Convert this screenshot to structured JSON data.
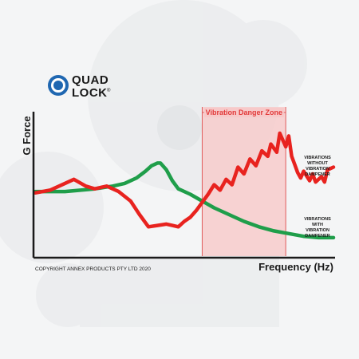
{
  "brand": {
    "name_line1": "QUAD",
    "name_line2": "LOCK",
    "trademark": "®",
    "accent_color": "#1f67b1"
  },
  "copyright": "COPYRIGHT ANNEX PRODUCTS PTY LTD 2020",
  "colors": {
    "danger_zone_fill": "#f7c9c9",
    "danger_zone_border": "#e05a5a",
    "danger_zone_label": "#e23a3a",
    "without_dampener": "#e8231f",
    "with_dampener": "#1f9e4a",
    "axis": "#1a1a1a"
  },
  "chart_data": {
    "type": "line",
    "xlabel": "Frequency (Hz)",
    "ylabel": "G Force",
    "xlim": [
      0,
      100
    ],
    "ylim": [
      0,
      100
    ],
    "grid": false,
    "legend": "inline-right",
    "band": {
      "label": "Vibration Danger Zone",
      "x_start": 56,
      "x_end": 84
    },
    "series": [
      {
        "name": "VIBRATIONS WITHOUT VIBRATION DAMPENER",
        "color": "#e8231f",
        "points": [
          [
            0,
            46
          ],
          [
            5,
            48
          ],
          [
            10,
            53
          ],
          [
            13,
            56
          ],
          [
            17,
            51
          ],
          [
            20,
            49
          ],
          [
            24,
            51
          ],
          [
            28,
            47
          ],
          [
            32,
            40
          ],
          [
            35,
            30
          ],
          [
            38,
            21
          ],
          [
            41,
            22
          ],
          [
            44,
            23
          ],
          [
            46,
            22
          ],
          [
            48,
            21
          ],
          [
            50,
            25
          ],
          [
            52,
            28
          ],
          [
            54,
            33
          ],
          [
            56,
            39
          ],
          [
            58,
            45
          ],
          [
            60,
            52
          ],
          [
            62,
            48
          ],
          [
            64,
            56
          ],
          [
            66,
            52
          ],
          [
            68,
            65
          ],
          [
            70,
            60
          ],
          [
            72,
            71
          ],
          [
            74,
            66
          ],
          [
            76,
            77
          ],
          [
            78,
            73
          ],
          [
            79,
            82
          ],
          [
            81,
            76
          ],
          [
            82,
            90
          ],
          [
            84,
            80
          ],
          [
            85,
            88
          ],
          [
            86,
            73
          ],
          [
            87,
            67
          ],
          [
            88,
            61
          ],
          [
            89,
            57
          ],
          [
            90,
            62
          ],
          [
            92,
            55
          ],
          [
            93,
            60
          ],
          [
            94,
            54
          ],
          [
            96,
            58
          ],
          [
            97,
            54
          ],
          [
            98,
            63
          ],
          [
            100,
            65
          ]
        ]
      },
      {
        "name": "VIBRATIONS WITH VIBRATION DAMPENER",
        "color": "#1f9e4a",
        "points": [
          [
            0,
            47
          ],
          [
            10,
            47
          ],
          [
            20,
            49
          ],
          [
            26,
            51
          ],
          [
            30,
            53
          ],
          [
            34,
            57
          ],
          [
            37,
            62
          ],
          [
            39,
            66
          ],
          [
            41,
            68
          ],
          [
            42,
            68
          ],
          [
            44,
            63
          ],
          [
            46,
            55
          ],
          [
            48,
            49
          ],
          [
            52,
            45
          ],
          [
            56,
            40
          ],
          [
            60,
            35
          ],
          [
            65,
            30
          ],
          [
            70,
            25
          ],
          [
            75,
            21
          ],
          [
            80,
            18
          ],
          [
            85,
            16
          ],
          [
            90,
            14
          ],
          [
            95,
            13
          ],
          [
            100,
            13
          ]
        ]
      }
    ]
  }
}
